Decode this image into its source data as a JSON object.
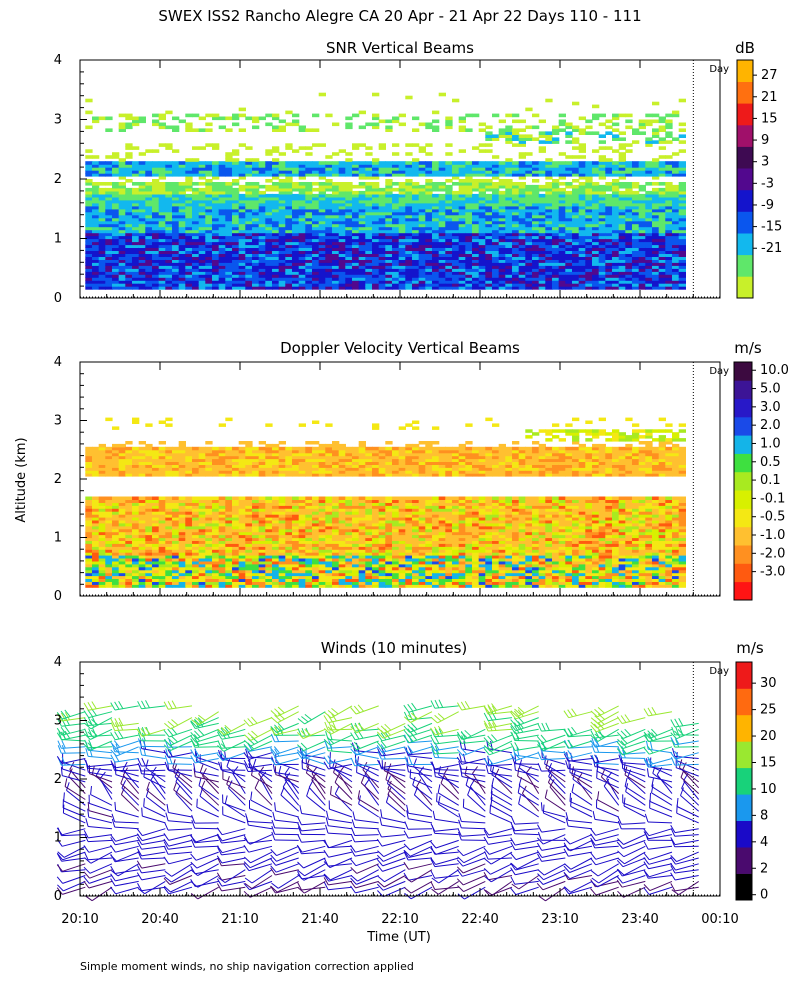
{
  "chart_data": {
    "title": "SWEX ISS2 Rancho Alegre CA  20 Apr - 21 Apr 22 Days 110 - 111",
    "footnote": "Simple moment winds, no ship navigation correction applied",
    "shared_y": {
      "label": "Altitude (km)",
      "lim": [
        0,
        4
      ],
      "ticks": [
        "0",
        "1",
        "2",
        "3",
        "4"
      ]
    },
    "shared_x": {
      "label": "Time (UT)",
      "ticks": [
        "20:10",
        "20:40",
        "21:10",
        "21:40",
        "22:10",
        "22:40",
        "23:10",
        "23:40",
        "00:10"
      ],
      "range_minutes_from_2010": [
        0,
        240
      ],
      "day_boundary_minutes": 230,
      "day_label": "Day"
    },
    "panels": [
      {
        "id": "snr",
        "type": "heatmap",
        "title": "SNR Vertical Beams",
        "unit": "dB",
        "colorbar_ticks": [
          "27",
          "21",
          "15",
          "9",
          "3",
          "-3",
          "-9",
          "-15",
          "-21"
        ],
        "colors": [
          "#c8f02a",
          "#5fe76a",
          "#12b8ee",
          "#0a56ee",
          "#1414cc",
          "#52088e",
          "#3e0a52",
          "#a0106a",
          "#ee1a1a",
          "#ff7010",
          "#ffb400"
        ],
        "layers": [
          {
            "alt_range_km": [
              0.15,
              1.1
            ],
            "level": "-3 to 3"
          },
          {
            "alt_range_km": [
              1.1,
              1.55
            ],
            "level": "-9 to -3"
          },
          {
            "alt_range_km": [
              1.55,
              1.75
            ],
            "level": "-15 to -9"
          },
          {
            "alt_range_km": [
              1.75,
              1.95
            ],
            "level": "-21 to -15"
          },
          {
            "alt_range_km": [
              2.05,
              2.3
            ],
            "level": "-15 to -3"
          },
          {
            "alt_range_km": [
              2.9,
              3.05
            ],
            "level": "-21 to -15"
          }
        ]
      },
      {
        "id": "vel",
        "type": "heatmap",
        "title": "Doppler Velocity Vertical Beams",
        "unit": "m/s",
        "colorbar_ticks": [
          "10.0",
          "5.0",
          "3.0",
          "2.0",
          "1.0",
          "0.5",
          "0.1",
          "-0.1",
          "-0.5",
          "-1.0",
          "-2.0",
          "-3.0"
        ],
        "colors": [
          "#ff1414",
          "#ff5a10",
          "#ff9020",
          "#ffc030",
          "#f4e814",
          "#d8f000",
          "#a8ea20",
          "#3ee040",
          "#14b4e8",
          "#1a4ae8",
          "#2818c8",
          "#3c1496",
          "#3c0a40"
        ],
        "layers": [
          {
            "alt_range_km": [
              0.15,
              0.7
            ],
            "level": "-0.5 to 1.0 (mixed)"
          },
          {
            "alt_range_km": [
              0.7,
              1.7
            ],
            "level": "-1.0 to -0.1"
          },
          {
            "alt_range_km": [
              2.05,
              2.5
            ],
            "level": "-1.0 to -0.5"
          },
          {
            "alt_range_km": [
              2.6,
              2.8
            ],
            "level": "-0.5 to 0.1"
          }
        ]
      },
      {
        "id": "wind",
        "type": "wind_barbs",
        "title": "Winds (10 minutes)",
        "unit": "m/s",
        "colorbar_ticks": [
          "30",
          "25",
          "20",
          "15",
          "10",
          "8",
          "4",
          "2",
          "0"
        ],
        "colors": [
          "#000000",
          "#4a0a6e",
          "#1a0ac8",
          "#1a98ee",
          "#18d27a",
          "#9ae830",
          "#ffb400",
          "#ff6a10",
          "#ee1a1a"
        ],
        "profile": [
          {
            "alt_km": 0.2,
            "speed_ms": 4,
            "dir_deg": 250
          },
          {
            "alt_km": 0.5,
            "speed_ms": 5,
            "dir_deg": 250
          },
          {
            "alt_km": 0.8,
            "speed_ms": 6,
            "dir_deg": 255
          },
          {
            "alt_km": 1.1,
            "speed_ms": 6,
            "dir_deg": 260
          },
          {
            "alt_km": 1.4,
            "speed_ms": 5,
            "dir_deg": 300
          },
          {
            "alt_km": 1.7,
            "speed_ms": 4,
            "dir_deg": 320
          },
          {
            "alt_km": 2.0,
            "speed_ms": 5,
            "dir_deg": 290
          },
          {
            "alt_km": 2.3,
            "speed_ms": 8,
            "dir_deg": 270
          },
          {
            "alt_km": 2.6,
            "speed_ms": 10,
            "dir_deg": 260
          },
          {
            "alt_km": 2.8,
            "speed_ms": 14,
            "dir_deg": 255
          },
          {
            "alt_km": 3.1,
            "speed_ms": 16,
            "dir_deg": 250
          }
        ]
      }
    ]
  }
}
